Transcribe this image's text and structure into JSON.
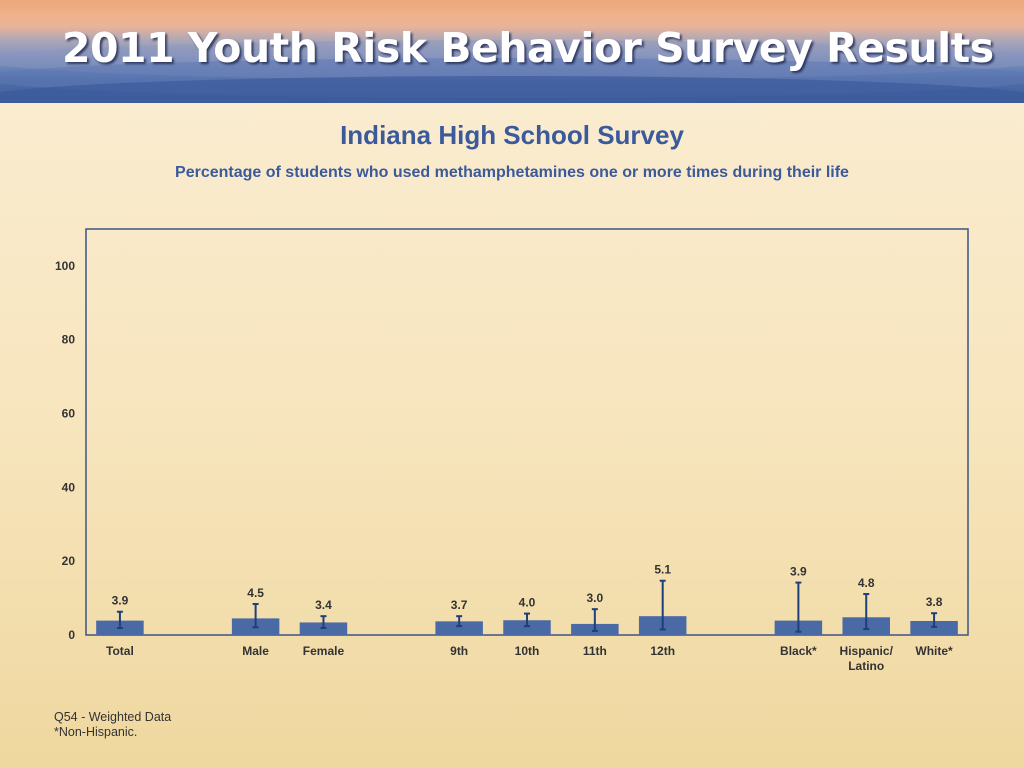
{
  "banner": {
    "title": "2011 Youth Risk Behavior Survey Results"
  },
  "colors": {
    "bar": "#4a6aa6",
    "error_bar": "#1f3f7a",
    "axis": "#3b5583",
    "title": "#3b5a9c",
    "label": "#333333"
  },
  "chart_data": {
    "type": "bar",
    "title": "Indiana High School Survey",
    "subtitle": "Percentage of students who used methamphetamines one or more times during their life",
    "xlabel": "",
    "ylabel": "",
    "ylim": [
      0,
      110
    ],
    "yticks": [
      0,
      20,
      40,
      60,
      80,
      100
    ],
    "grid": false,
    "legend": "none",
    "groups": [
      {
        "categories": [
          {
            "label": [
              "Total"
            ],
            "value": 3.9,
            "value_label": "3.9",
            "ci": [
              1.9,
              6.3
            ]
          }
        ]
      },
      {
        "categories": [
          {
            "label": [
              "Male"
            ],
            "value": 4.5,
            "value_label": "4.5",
            "ci": [
              2.1,
              8.4
            ]
          },
          {
            "label": [
              "Female"
            ],
            "value": 3.4,
            "value_label": "3.4",
            "ci": [
              1.9,
              5.1
            ]
          }
        ]
      },
      {
        "categories": [
          {
            "label": [
              "9th"
            ],
            "value": 3.7,
            "value_label": "3.7",
            "ci": [
              2.4,
              5.1
            ]
          },
          {
            "label": [
              "10th"
            ],
            "value": 4.0,
            "value_label": "4.0",
            "ci": [
              2.4,
              5.8
            ]
          },
          {
            "label": [
              "11th"
            ],
            "value": 3.0,
            "value_label": "3.0",
            "ci": [
              1.1,
              7.0
            ]
          },
          {
            "label": [
              "12th"
            ],
            "value": 5.1,
            "value_label": "5.1",
            "ci": [
              1.5,
              14.7
            ]
          }
        ]
      },
      {
        "categories": [
          {
            "label": [
              "Black*"
            ],
            "value": 3.9,
            "value_label": "3.9",
            "ci": [
              0.9,
              14.2
            ]
          },
          {
            "label": [
              "Hispanic/",
              "Latino"
            ],
            "value": 4.8,
            "value_label": "4.8",
            "ci": [
              1.6,
              11.1
            ]
          },
          {
            "label": [
              "White*"
            ],
            "value": 3.8,
            "value_label": "3.8",
            "ci": [
              2.2,
              5.9
            ]
          }
        ]
      }
    ]
  },
  "footnotes": [
    "Q54 - Weighted Data",
    "*Non-Hispanic."
  ]
}
